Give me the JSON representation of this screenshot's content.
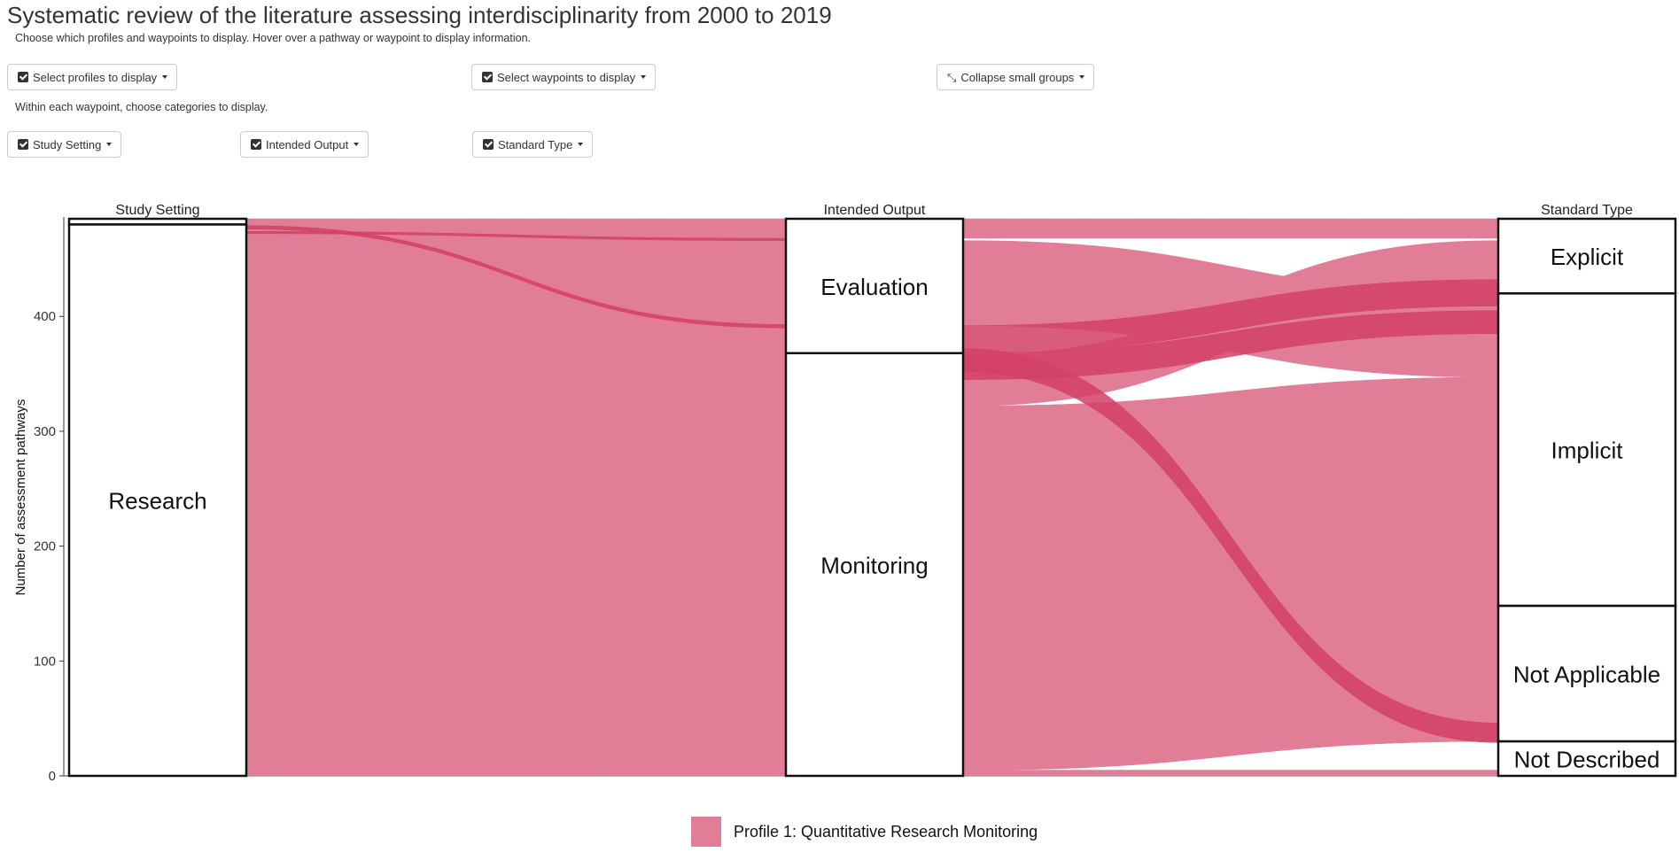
{
  "page": {
    "title": "Systematic review of the literature assessing interdisciplinarity from 2000 to 2019",
    "instructions": "Choose which profiles and waypoints to display. Hover over a pathway or waypoint to display information.",
    "category_instructions": "Within each waypoint, choose categories to display."
  },
  "controls": {
    "profiles_label": "Select profiles to display",
    "waypoints_label": "Select waypoints to display",
    "collapse_label": "Collapse small groups",
    "study_setting_label": "Study Setting",
    "intended_output_label": "Intended Output",
    "standard_type_label": "Standard Type"
  },
  "colors": {
    "profile": "#e27d98",
    "highlight": "#d43f66",
    "node_border": "#111111"
  },
  "chart_data": {
    "type": "alluvial",
    "ylabel": "Number of assessment pathways",
    "ylim": [
      0,
      485
    ],
    "yticks": [
      0,
      100,
      200,
      300,
      400
    ],
    "axes": [
      {
        "title": "Study Setting",
        "nodes": [
          {
            "label": "",
            "start": 480,
            "end": 485
          },
          {
            "label": "Research",
            "start": 0,
            "end": 480
          }
        ]
      },
      {
        "title": "Intended Output",
        "nodes": [
          {
            "label": "Evaluation",
            "start": 368,
            "end": 485
          },
          {
            "label": "Monitoring",
            "start": 0,
            "end": 368
          }
        ]
      },
      {
        "title": "Standard Type",
        "nodes": [
          {
            "label": "Explicit",
            "start": 420,
            "end": 485
          },
          {
            "label": "Implicit",
            "start": 148,
            "end": 420
          },
          {
            "label": "Not Applicable",
            "start": 30,
            "end": 148
          },
          {
            "label": "Not Described",
            "start": 0,
            "end": 30
          }
        ]
      }
    ],
    "flows": [
      {
        "from_axis": 0,
        "from": [
          481,
          485
        ],
        "to": [
          481,
          485
        ],
        "color": "profile"
      },
      {
        "from_axis": 0,
        "from": [
          467,
          481
        ],
        "to": [
          467,
          481
        ],
        "color": "profile"
      },
      {
        "from_axis": 0,
        "from": [
          388,
          467
        ],
        "to": [
          388,
          467
        ],
        "color": "profile"
      },
      {
        "from_axis": 0,
        "from": [
          0,
          388
        ],
        "to": [
          0,
          388
        ],
        "color": "profile"
      },
      {
        "from_axis": 0,
        "from": [
          476,
          479
        ],
        "to": [
          390,
          393
        ],
        "color": "highlight"
      },
      {
        "from_axis": 0,
        "from": [
          472,
          474
        ],
        "to": [
          466,
          468
        ],
        "color": "highlight"
      },
      {
        "from_axis": 1,
        "from": [
          468,
          485
        ],
        "to": [
          468,
          485
        ],
        "color": "profile"
      },
      {
        "from_axis": 1,
        "from": [
          392,
          466
        ],
        "to": [
          347,
          421
        ],
        "color": "profile"
      },
      {
        "from_axis": 1,
        "from": [
          322,
          366
        ],
        "to": [
          420,
          466
        ],
        "color": "profile"
      },
      {
        "from_axis": 1,
        "from": [
          5,
          322
        ],
        "to": [
          30,
          347
        ],
        "color": "profile"
      },
      {
        "from_axis": 1,
        "from": [
          0,
          5
        ],
        "to": [
          0,
          5
        ],
        "color": "profile"
      },
      {
        "from_axis": 1,
        "from": [
          368,
          392
        ],
        "to": [
          409,
          432
        ],
        "color": "highlight"
      },
      {
        "from_axis": 1,
        "from": [
          345,
          368
        ],
        "to": [
          385,
          405
        ],
        "color": "highlight"
      },
      {
        "from_axis": 1,
        "from": [
          352,
          372
        ],
        "to": [
          29,
          46
        ],
        "color": "highlight"
      }
    ],
    "legend": [
      {
        "name": "Profile 1: Quantitative Research Monitoring",
        "color": "profile"
      }
    ]
  }
}
